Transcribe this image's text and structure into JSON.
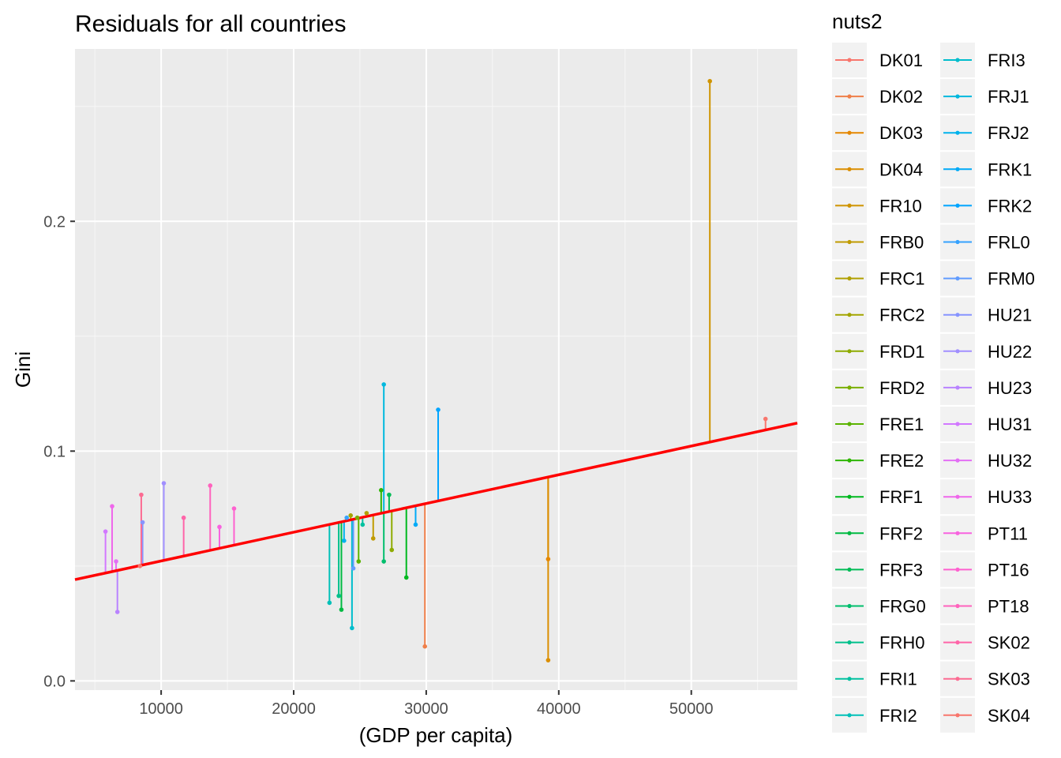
{
  "chart_data": {
    "type": "scatter",
    "title": "Residuals for all countries",
    "xlabel": "(GDP per capita)",
    "ylabel": "Gini",
    "xlim": [
      3500,
      58000
    ],
    "ylim": [
      -0.004,
      0.275
    ],
    "x_ticks": [
      10000,
      20000,
      30000,
      40000,
      50000
    ],
    "x_tick_labels": [
      "10000",
      "20000",
      "30000",
      "40000",
      "50000"
    ],
    "y_ticks": [
      0.0,
      0.1,
      0.2
    ],
    "y_tick_labels": [
      "0.0",
      "0.1",
      "0.2"
    ],
    "grid": true,
    "legend_title": "nuts2",
    "legend_position": "right",
    "regression_line": {
      "intercept": 0.0397,
      "slope": 1.25e-06,
      "color": "#ff0000"
    },
    "series": [
      {
        "name": "DK01",
        "color": "#F8766D",
        "x": 55600,
        "y": 0.114,
        "fitted": 0.1092
      },
      {
        "name": "DK02",
        "color": "#EF7F49",
        "x": 29900,
        "y": 0.015,
        "fitted": 0.0771
      },
      {
        "name": "DK03",
        "color": "#E58700",
        "x": 39200,
        "y": 0.053,
        "fitted": 0.0887
      },
      {
        "name": "DK04",
        "color": "#DB8E00",
        "x": 39200,
        "y": 0.009,
        "fitted": 0.0887
      },
      {
        "name": "FR10",
        "color": "#CF9400",
        "x": 51400,
        "y": 0.261,
        "fitted": 0.104
      },
      {
        "name": "FRB0",
        "color": "#C09B00",
        "x": 26000,
        "y": 0.062,
        "fitted": 0.0722
      },
      {
        "name": "FRC1",
        "color": "#B1A000",
        "x": 25500,
        "y": 0.073,
        "fitted": 0.0716
      },
      {
        "name": "FRC2",
        "color": "#A3A500",
        "x": 24300,
        "y": 0.072,
        "fitted": 0.0701
      },
      {
        "name": "FRD1",
        "color": "#8EAB00",
        "x": 27400,
        "y": 0.057,
        "fitted": 0.074
      },
      {
        "name": "FRD2",
        "color": "#7AAF00",
        "x": 24800,
        "y": 0.071,
        "fitted": 0.0707
      },
      {
        "name": "FRE1",
        "color": "#5BB300",
        "x": 24900,
        "y": 0.052,
        "fitted": 0.0708
      },
      {
        "name": "FRE2",
        "color": "#2DB600",
        "x": 26600,
        "y": 0.083,
        "fitted": 0.073
      },
      {
        "name": "FRF1",
        "color": "#00B81F",
        "x": 28500,
        "y": 0.045,
        "fitted": 0.0753
      },
      {
        "name": "FRF2",
        "color": "#00BA42",
        "x": 23600,
        "y": 0.031,
        "fitted": 0.0692
      },
      {
        "name": "FRF3",
        "color": "#00BC56",
        "x": 27200,
        "y": 0.081,
        "fitted": 0.0737
      },
      {
        "name": "FRG0",
        "color": "#00BE6C",
        "x": 26800,
        "y": 0.052,
        "fitted": 0.0732
      },
      {
        "name": "FRH0",
        "color": "#00C08B",
        "x": 23400,
        "y": 0.037,
        "fitted": 0.069
      },
      {
        "name": "FRI1",
        "color": "#00C1A0",
        "x": 25200,
        "y": 0.068,
        "fitted": 0.0712
      },
      {
        "name": "FRI2",
        "color": "#00C0B8",
        "x": 22700,
        "y": 0.034,
        "fitted": 0.0681
      },
      {
        "name": "FRI3",
        "color": "#00BDCC",
        "x": 24400,
        "y": 0.023,
        "fitted": 0.0702
      },
      {
        "name": "FRJ1",
        "color": "#00B8DE",
        "x": 26800,
        "y": 0.129,
        "fitted": 0.0732
      },
      {
        "name": "FRJ2",
        "color": "#00B2EC",
        "x": 23800,
        "y": 0.061,
        "fitted": 0.0695
      },
      {
        "name": "FRK1",
        "color": "#00AAF7",
        "x": 29200,
        "y": 0.068,
        "fitted": 0.0762
      },
      {
        "name": "FRK2",
        "color": "#00A5FF",
        "x": 30900,
        "y": 0.118,
        "fitted": 0.0783
      },
      {
        "name": "FRL0",
        "color": "#35A2FF",
        "x": 24000,
        "y": 0.071,
        "fitted": 0.0697
      },
      {
        "name": "FRM0",
        "color": "#619CFF",
        "x": 24500,
        "y": 0.049,
        "fitted": 0.0703
      },
      {
        "name": "HU21",
        "color": "#8794FF",
        "x": 8600,
        "y": 0.069,
        "fitted": 0.0505
      },
      {
        "name": "HU22",
        "color": "#A18FFF",
        "x": 10200,
        "y": 0.086,
        "fitted": 0.0525
      },
      {
        "name": "HU23",
        "color": "#B983FF",
        "x": 6700,
        "y": 0.03,
        "fitted": 0.0481
      },
      {
        "name": "HU31",
        "color": "#D278FF",
        "x": 5800,
        "y": 0.065,
        "fitted": 0.047
      },
      {
        "name": "HU32",
        "color": "#E36FF5",
        "x": 6600,
        "y": 0.052,
        "fitted": 0.048
      },
      {
        "name": "HU33",
        "color": "#EF67EB",
        "x": 6300,
        "y": 0.076,
        "fitted": 0.0476
      },
      {
        "name": "PT11",
        "color": "#F863DF",
        "x": 14400,
        "y": 0.067,
        "fitted": 0.0577
      },
      {
        "name": "PT16",
        "color": "#FE61CF",
        "x": 15500,
        "y": 0.075,
        "fitted": 0.0591
      },
      {
        "name": "PT18",
        "color": "#FF63BD",
        "x": 13700,
        "y": 0.085,
        "fitted": 0.0568
      },
      {
        "name": "SK02",
        "color": "#FF65A9",
        "x": 11700,
        "y": 0.071,
        "fitted": 0.0543
      },
      {
        "name": "SK03",
        "color": "#FC6B92",
        "x": 8500,
        "y": 0.081,
        "fitted": 0.0503
      },
      {
        "name": "SK04",
        "color": "#F8766D",
        "x": 8400,
        "y": 0.05,
        "fitted": 0.0502
      }
    ]
  }
}
